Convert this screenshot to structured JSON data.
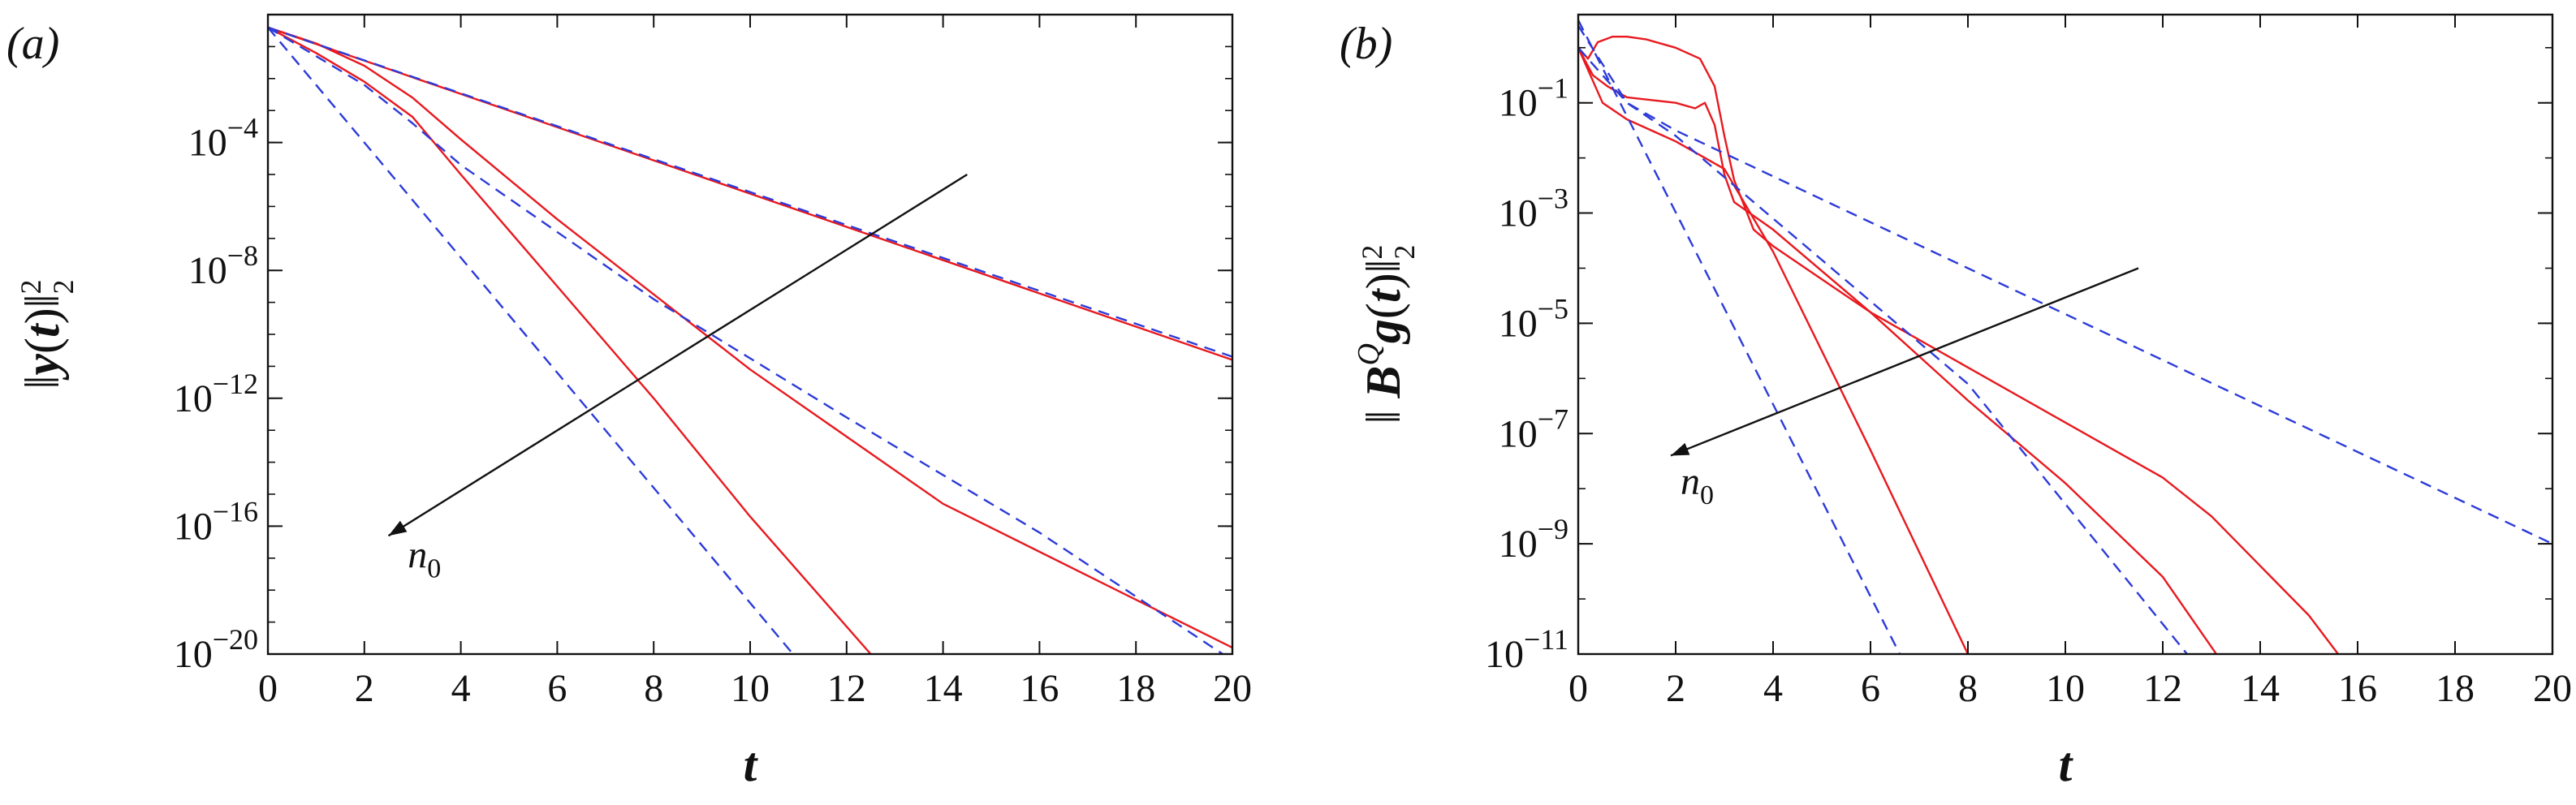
{
  "chart_data": [
    {
      "panel": "(a)",
      "type": "line",
      "yscale": "log",
      "xlabel": "t",
      "ylabel": "||y(t)||²₂",
      "xlim": [
        0,
        20
      ],
      "ylim_exp": [
        -20,
        0
      ],
      "x_ticks": [
        "0",
        "2",
        "4",
        "6",
        "8",
        "10",
        "12",
        "14",
        "16",
        "18",
        "20"
      ],
      "y_ticks": [
        {
          "exp": -4,
          "label": "10",
          "sup": "−4"
        },
        {
          "exp": -8,
          "label": "10",
          "sup": "−8"
        },
        {
          "exp": -12,
          "label": "10",
          "sup": "−12"
        },
        {
          "exp": -16,
          "label": "10",
          "sup": "−16"
        },
        {
          "exp": -20,
          "label": "10",
          "sup": "−20"
        }
      ],
      "annotation": {
        "text": "n",
        "sub": "0",
        "arrow_from": [
          14.5,
          -5.0
        ],
        "arrow_to": [
          2.5,
          -16.3
        ],
        "text_at": [
          2.9,
          -17.3
        ]
      },
      "series": [
        {
          "name": "red-1",
          "color": "#e8191f",
          "dash": "solid",
          "points": [
            [
              0,
              -0.4
            ],
            [
              20,
              -10.8
            ]
          ]
        },
        {
          "name": "red-2",
          "color": "#e8191f",
          "dash": "solid",
          "points": [
            [
              0,
              -0.4
            ],
            [
              1,
              -0.9
            ],
            [
              2,
              -1.6
            ],
            [
              3,
              -2.6
            ],
            [
              4,
              -3.9
            ],
            [
              6,
              -6.4
            ],
            [
              10,
              -11.1
            ],
            [
              14,
              -15.3
            ],
            [
              20,
              -19.8
            ]
          ]
        },
        {
          "name": "red-3",
          "color": "#e8191f",
          "dash": "solid",
          "points": [
            [
              0,
              -0.4
            ],
            [
              1,
              -1.2
            ],
            [
              2,
              -2.1
            ],
            [
              3,
              -3.2
            ],
            [
              4,
              -5.0
            ],
            [
              6,
              -8.5
            ],
            [
              8,
              -12.0
            ],
            [
              10,
              -15.7
            ],
            [
              12.5,
              -20.0
            ]
          ]
        },
        {
          "name": "blue-1",
          "color": "#2c3bd9",
          "dash": "dashed",
          "points": [
            [
              0,
              -0.4
            ],
            [
              20,
              -10.7
            ]
          ]
        },
        {
          "name": "blue-2",
          "color": "#2c3bd9",
          "dash": "dashed",
          "points": [
            [
              0,
              -0.4
            ],
            [
              1,
              -1.3
            ],
            [
              2,
              -2.2
            ],
            [
              3,
              -3.4
            ],
            [
              4,
              -4.7
            ],
            [
              8,
              -8.9
            ],
            [
              12,
              -12.6
            ],
            [
              16,
              -16.2
            ],
            [
              20,
              -20.2
            ]
          ]
        },
        {
          "name": "blue-3",
          "color": "#2c3bd9",
          "dash": "dashed",
          "points": [
            [
              0,
              -0.4
            ],
            [
              11,
              -20.2
            ]
          ]
        }
      ]
    },
    {
      "panel": "(b)",
      "type": "line",
      "yscale": "log",
      "xlabel": "t",
      "ylabel": "||B^Q g(t)||²₂",
      "xlim": [
        0,
        20
      ],
      "ylim_exp": [
        -11,
        0.6
      ],
      "x_ticks": [
        "0",
        "2",
        "4",
        "6",
        "8",
        "10",
        "12",
        "14",
        "16",
        "18",
        "20"
      ],
      "y_ticks": [
        {
          "exp": -1,
          "label": "10",
          "sup": "−1"
        },
        {
          "exp": -3,
          "label": "10",
          "sup": "−3"
        },
        {
          "exp": -5,
          "label": "10",
          "sup": "−5"
        },
        {
          "exp": -7,
          "label": "10",
          "sup": "−7"
        },
        {
          "exp": -9,
          "label": "10",
          "sup": "−9"
        },
        {
          "exp": -11,
          "label": "10",
          "sup": "−11"
        }
      ],
      "annotation": {
        "text": "n",
        "sub": "0",
        "arrow_from": [
          11.5,
          -4.0
        ],
        "arrow_to": [
          1.9,
          -7.4
        ],
        "text_at": [
          2.1,
          -8.1
        ]
      },
      "series": [
        {
          "name": "red-a",
          "color": "#e8191f",
          "dash": "solid",
          "points": [
            [
              0,
              0.0
            ],
            [
              0.2,
              -0.2
            ],
            [
              0.4,
              0.1
            ],
            [
              0.7,
              0.2
            ],
            [
              1.0,
              0.2
            ],
            [
              1.4,
              0.15
            ],
            [
              2.0,
              0.0
            ],
            [
              2.5,
              -0.2
            ],
            [
              2.8,
              -0.7
            ],
            [
              3.0,
              -1.6
            ],
            [
              3.2,
              -2.4
            ],
            [
              3.6,
              -3.3
            ],
            [
              4.0,
              -3.6
            ],
            [
              5.0,
              -4.2
            ],
            [
              6.0,
              -4.8
            ],
            [
              8.0,
              -5.8
            ],
            [
              10,
              -6.8
            ],
            [
              12,
              -7.8
            ],
            [
              13,
              -8.5
            ],
            [
              14,
              -9.4
            ],
            [
              15,
              -10.3
            ],
            [
              15.6,
              -11.0
            ]
          ]
        },
        {
          "name": "red-b",
          "color": "#e8191f",
          "dash": "solid",
          "points": [
            [
              0,
              0.0
            ],
            [
              0.3,
              -0.5
            ],
            [
              0.6,
              -0.7
            ],
            [
              1.0,
              -0.9
            ],
            [
              1.5,
              -0.95
            ],
            [
              2.0,
              -1.0
            ],
            [
              2.4,
              -1.1
            ],
            [
              2.6,
              -1.0
            ],
            [
              2.8,
              -1.4
            ],
            [
              3.0,
              -2.3
            ],
            [
              3.2,
              -2.8
            ],
            [
              4.0,
              -3.3
            ],
            [
              6.0,
              -4.8
            ],
            [
              8.0,
              -6.4
            ],
            [
              10,
              -7.9
            ],
            [
              12,
              -9.6
            ],
            [
              13.1,
              -11.0
            ]
          ]
        },
        {
          "name": "red-c",
          "color": "#e8191f",
          "dash": "solid",
          "points": [
            [
              0,
              0.0
            ],
            [
              0.5,
              -1.0
            ],
            [
              1.0,
              -1.3
            ],
            [
              2.0,
              -1.7
            ],
            [
              3.0,
              -2.2
            ],
            [
              4.0,
              -3.7
            ],
            [
              6.0,
              -7.3
            ],
            [
              8.0,
              -11.0
            ]
          ]
        },
        {
          "name": "blue-a",
          "color": "#2c3bd9",
          "dash": "dashed",
          "points": [
            [
              0,
              0.4
            ],
            [
              1,
              -1.0
            ],
            [
              2,
              -1.5
            ],
            [
              20,
              -9.0
            ]
          ]
        },
        {
          "name": "blue-b",
          "color": "#2c3bd9",
          "dash": "dashed",
          "points": [
            [
              0,
              0.0
            ],
            [
              1,
              -1.0
            ],
            [
              2,
              -1.6
            ],
            [
              4,
              -3.1
            ],
            [
              8,
              -6.1
            ],
            [
              12.5,
              -11.0
            ]
          ]
        },
        {
          "name": "blue-c",
          "color": "#2c3bd9",
          "dash": "dashed",
          "points": [
            [
              0,
              0.5
            ],
            [
              6.6,
              -11.0
            ]
          ]
        }
      ]
    }
  ]
}
